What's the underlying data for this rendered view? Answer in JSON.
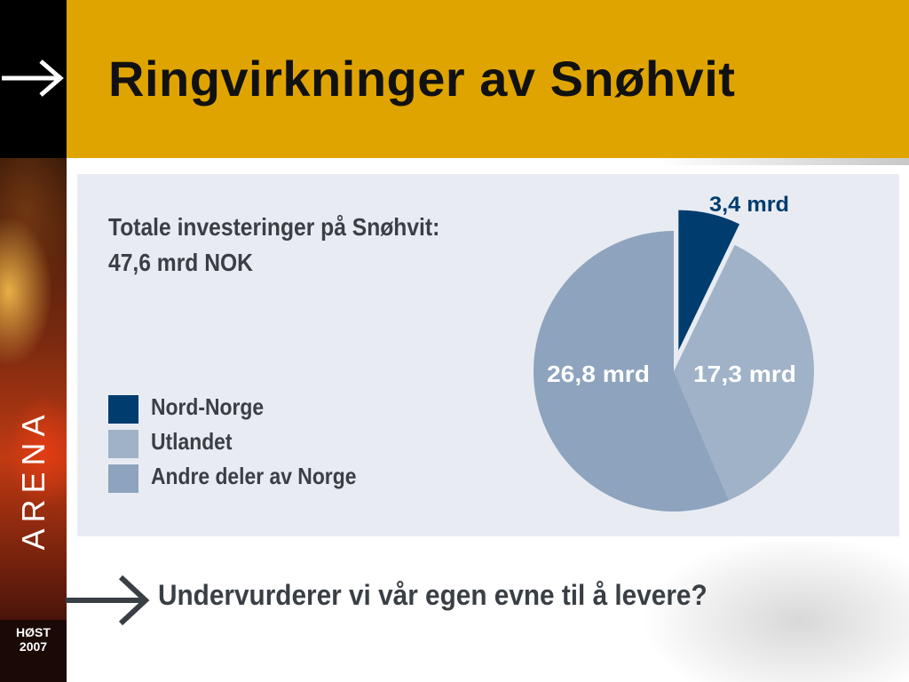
{
  "slide": {
    "title": "Ringvirkninger av Snøhvit",
    "brand": "ARENA",
    "season_line1": "HØST",
    "season_line2": "2007",
    "subtitle": "Undervurderer vi vår egen evne til å levere?",
    "colors": {
      "title_bar": "#e0a400",
      "left_strip": "#1a0a05",
      "panel": "#e8ecf2"
    }
  },
  "chart_data": {
    "type": "pie",
    "title_line1": "Totale investeringer på Snøhvit:",
    "title_line2": "47,6 mrd NOK",
    "unit": "mrd NOK",
    "slices": [
      {
        "name": "Nord-Norge",
        "value": 3.4,
        "label": "3,4 mrd",
        "color": "#003c6e",
        "exploded": true
      },
      {
        "name": "Utlandet",
        "value": 17.3,
        "label": "17,3 mrd",
        "color": "#9fb2c8",
        "exploded": false
      },
      {
        "name": "Andre deler av Norge",
        "value": 26.8,
        "label": "26,8 mrd",
        "color": "#8ea3bd",
        "exploded": false
      }
    ],
    "legend": {
      "placement": "left",
      "items": [
        {
          "label": "Nord-Norge",
          "color": "#003c6e"
        },
        {
          "label": "Utlandet",
          "color": "#9fb2c8"
        },
        {
          "label": "Andre deler av Norge",
          "color": "#8ea3bd"
        }
      ]
    }
  }
}
